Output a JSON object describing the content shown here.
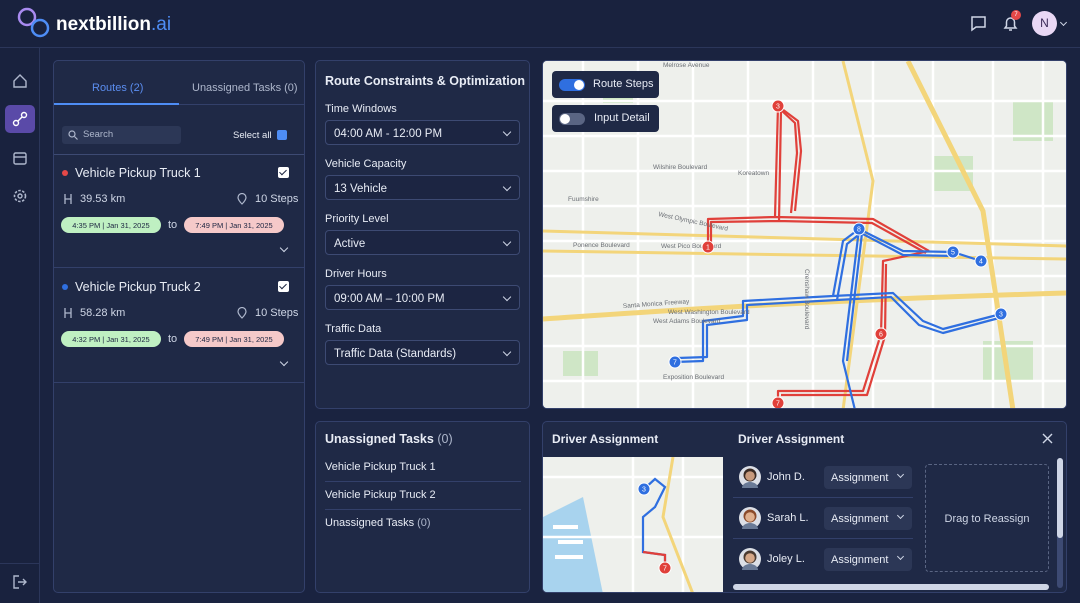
{
  "header": {
    "brand": "nextbillion",
    "brand_suffix": ".ai",
    "notification_count": "7",
    "avatar": "N"
  },
  "routes_panel": {
    "tabs": [
      "Routes (2)",
      "Unassigned Tasks (0)"
    ],
    "search_placeholder": "Search",
    "select_all": "Select all",
    "vehicles": [
      {
        "name": "Vehicle Pickup Truck 1",
        "distance": "39.53 km",
        "steps": "10 Steps",
        "start": "4:35 PM | Jan 31, 2025",
        "separator": "to",
        "end": "7:49 PM | Jan 31, 2025"
      },
      {
        "name": "Vehicle Pickup Truck 2",
        "distance": "58.28 km",
        "steps": "10 Steps",
        "start": "4:32 PM | Jan 31, 2025",
        "separator": "to",
        "end": "7:49 PM | Jan 31, 2025"
      }
    ]
  },
  "constraints_panel": {
    "title": "Route Constraints & Optimization",
    "fields": [
      {
        "label": "Time Windows",
        "value": "04:00 AM - 12:00 PM"
      },
      {
        "label": "Vehicle Capacity",
        "value": "13 Vehicle"
      },
      {
        "label": "Priority Level",
        "value": "Active"
      },
      {
        "label": "Driver Hours",
        "value": "09:00 AM – 10:00 PM"
      },
      {
        "label": "Traffic Data",
        "value": "Traffic Data (Standards)"
      }
    ]
  },
  "map": {
    "toggles": [
      "Route Steps",
      "Input Detail"
    ],
    "street_labels": [
      "Melrose Avenue",
      "Wilshire Boulevard",
      "Koreatown",
      "Fuumshire",
      "West Olympic Boulevard",
      "Ponence Boulevard",
      "West Pico Boulevard",
      "Santa Monica Freeway",
      "West Washington Boulevard",
      "West Adams Boulevard",
      "Exposition Boulevard",
      "Crenshaw Boulevard"
    ],
    "markers": [
      "1",
      "3",
      "8",
      "5",
      "4",
      "3",
      "6",
      "7",
      "7"
    ]
  },
  "unassigned_panel": {
    "title": "Unassigned Tasks",
    "count": "(0)",
    "items": [
      {
        "text": "Vehicle Pickup Truck 1"
      },
      {
        "text": "Vehicle Pickup Truck 2"
      },
      {
        "text": "Unassigned Tasks",
        "count": "(0)"
      }
    ]
  },
  "driver_panel": {
    "map_title": "Driver Assignment",
    "list_title": "Driver Assignment",
    "drivers": [
      {
        "name": "John D.",
        "action": "Assignment"
      },
      {
        "name": "Sarah L.",
        "action": "Assignment"
      },
      {
        "name": "Joley L.",
        "action": "Assignment"
      }
    ],
    "drop_zone": "Drag to Reassign",
    "thumbnail_markers": [
      "3",
      "7"
    ]
  }
}
